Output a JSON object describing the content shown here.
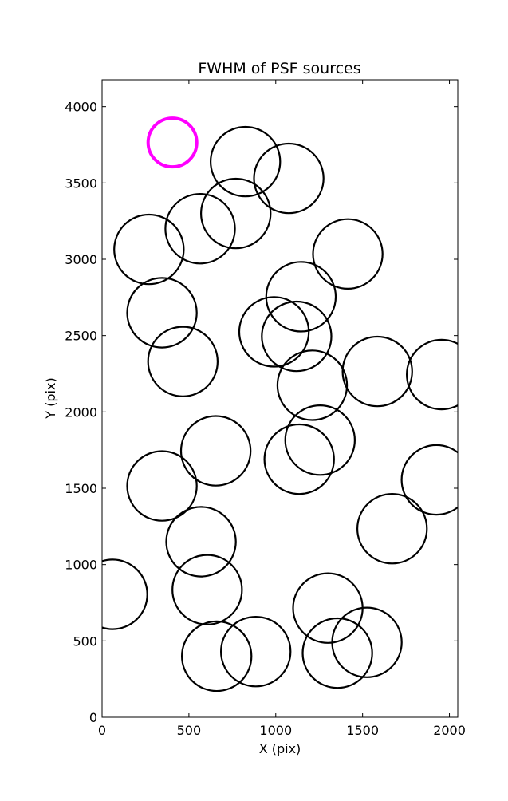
{
  "chart_data": {
    "type": "scatter",
    "title": "FWHM of PSF sources",
    "xlabel": "X (pix)",
    "ylabel": "Y (pix)",
    "xlim": [
      0,
      2048
    ],
    "ylim": [
      0,
      4176
    ],
    "xticks": [
      0,
      500,
      1000,
      1500,
      2000
    ],
    "yticks": [
      0,
      500,
      1000,
      1500,
      2000,
      2500,
      3000,
      3500,
      4000
    ],
    "grid": false,
    "marker": "circle",
    "series": [
      {
        "color": "#000000",
        "points": [
          {
            "x": 825,
            "y": 3640,
            "r": 200
          },
          {
            "x": 1075,
            "y": 3530,
            "r": 200
          },
          {
            "x": 770,
            "y": 3300,
            "r": 200
          },
          {
            "x": 565,
            "y": 3200,
            "r": 200
          },
          {
            "x": 270,
            "y": 3065,
            "r": 200
          },
          {
            "x": 1415,
            "y": 3035,
            "r": 200
          },
          {
            "x": 1145,
            "y": 2755,
            "r": 200
          },
          {
            "x": 345,
            "y": 2650,
            "r": 200
          },
          {
            "x": 990,
            "y": 2525,
            "r": 200
          },
          {
            "x": 1120,
            "y": 2495,
            "r": 200
          },
          {
            "x": 465,
            "y": 2330,
            "r": 200
          },
          {
            "x": 1585,
            "y": 2265,
            "r": 200
          },
          {
            "x": 1955,
            "y": 2245,
            "r": 200
          },
          {
            "x": 1210,
            "y": 2175,
            "r": 200
          },
          {
            "x": 1255,
            "y": 1815,
            "r": 200
          },
          {
            "x": 655,
            "y": 1745,
            "r": 200
          },
          {
            "x": 1135,
            "y": 1690,
            "r": 200
          },
          {
            "x": 1925,
            "y": 1555,
            "r": 200
          },
          {
            "x": 345,
            "y": 1515,
            "r": 200
          },
          {
            "x": 1670,
            "y": 1235,
            "r": 200
          },
          {
            "x": 570,
            "y": 1150,
            "r": 200
          },
          {
            "x": 605,
            "y": 835,
            "r": 200
          },
          {
            "x": 60,
            "y": 805,
            "r": 200
          },
          {
            "x": 1300,
            "y": 715,
            "r": 200
          },
          {
            "x": 1525,
            "y": 490,
            "r": 200
          },
          {
            "x": 885,
            "y": 430,
            "r": 200
          },
          {
            "x": 1355,
            "y": 420,
            "r": 200
          },
          {
            "x": 660,
            "y": 400,
            "r": 200
          }
        ]
      },
      {
        "color": "#ff00ff",
        "points": [
          {
            "x": 405,
            "y": 3765,
            "r": 140
          }
        ]
      }
    ]
  }
}
